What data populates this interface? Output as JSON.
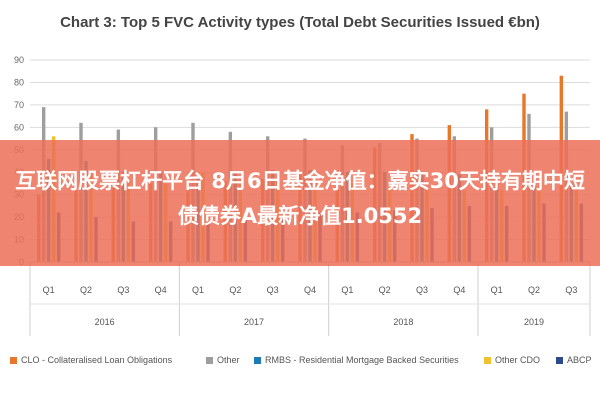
{
  "chart_data": {
    "type": "bar",
    "title": "Chart 3: Top 5 FVC Activity types (Total Debt Securities Issued €bn)",
    "xlabel": "",
    "ylabel": "",
    "ylim": [
      0,
      90
    ],
    "yticks": [
      "0",
      "10",
      "20",
      "30",
      "40",
      "50",
      "60",
      "70",
      "80",
      "90"
    ],
    "grid": true,
    "legend_position": "bottom",
    "categories": [
      "Q1",
      "Q2",
      "Q3",
      "Q4",
      "Q1",
      "Q2",
      "Q3",
      "Q4",
      "Q1",
      "Q2",
      "Q3",
      "Q4",
      "Q1",
      "Q2",
      "Q3"
    ],
    "groups": [
      {
        "label": "2016",
        "span": 4
      },
      {
        "label": "2017",
        "span": 4
      },
      {
        "label": "2018",
        "span": 4
      },
      {
        "label": "2019",
        "span": 3
      }
    ],
    "series": [
      {
        "name": "CLO - Collateralised Loan Obligations",
        "color": "#E8762B",
        "values": [
          30,
          32,
          33,
          35,
          35,
          36,
          37,
          39,
          41,
          51,
          57,
          61,
          68,
          75,
          83
        ]
      },
      {
        "name": "Other",
        "color": "#9E9E9E",
        "values": [
          69,
          62,
          59,
          60,
          62,
          58,
          56,
          55,
          52,
          53,
          55,
          56,
          60,
          66,
          67
        ]
      },
      {
        "name": "RMBS - Residential Mortgage Backed Securities",
        "color": "#1B7DB5",
        "values": [
          46,
          45,
          40,
          40,
          38,
          40,
          41,
          41,
          40,
          40,
          39,
          39,
          37,
          36,
          35
        ]
      },
      {
        "name": "Other CDO",
        "color": "#F2C12E",
        "values": [
          56,
          40,
          35,
          35,
          40,
          38,
          37,
          36,
          35,
          33,
          33,
          32,
          32,
          32,
          34
        ]
      },
      {
        "name": "ABCP",
        "color": "#2A4C8C",
        "values": [
          22,
          20,
          18,
          18,
          18,
          19,
          20,
          22,
          22,
          23,
          24,
          25,
          25,
          26,
          26
        ]
      }
    ]
  },
  "overlay": {
    "headline": "互联网股票杠杆平台 8月6日基金净值：嘉实30天持有期中短债债券A最新净值1.0552"
  }
}
